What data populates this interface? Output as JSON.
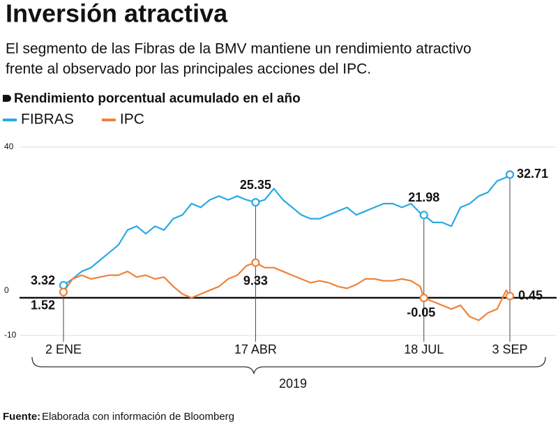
{
  "chart_data": {
    "type": "line",
    "title": "Inversión atractiva",
    "subtitle_lines": [
      "El segmento de las Fibras de la BMV mantiene un rendimiento atractivo",
      "frente al observado por las principales acciones del IPC."
    ],
    "chart_title": "Rendimiento porcentual acumulado en el año",
    "x": [
      2,
      7,
      12,
      17,
      22,
      27,
      32,
      37,
      42,
      47,
      52,
      57,
      62,
      67,
      72,
      77,
      82,
      87,
      92,
      97,
      102,
      107,
      112,
      117,
      122,
      127,
      132,
      137,
      142,
      147,
      152,
      157,
      162,
      167,
      172,
      177,
      182,
      187,
      192,
      197,
      199,
      204,
      209,
      214,
      219,
      224,
      229,
      234,
      239,
      244,
      246
    ],
    "xlim": [
      2,
      246
    ],
    "xticks": [
      {
        "value": 2,
        "label": "2 ENE"
      },
      {
        "value": 107,
        "label": "17 ABR"
      },
      {
        "value": 199,
        "label": "18 JUL"
      },
      {
        "value": 246,
        "label": "3 SEP"
      }
    ],
    "x_group_label": "2019",
    "ylim": [
      -10,
      40
    ],
    "yticks": [
      -10,
      0,
      40
    ],
    "series": [
      {
        "name": "FIBRAS",
        "color": "#29a9e1",
        "values": [
          3.32,
          5,
          7,
          8,
          10,
          12,
          14,
          18,
          19,
          17,
          19,
          18,
          21,
          22,
          25,
          24,
          26,
          27,
          26,
          27,
          26,
          25.35,
          26,
          29,
          26,
          24,
          22,
          21,
          21,
          22,
          23,
          24,
          22,
          23,
          24,
          25,
          25,
          24,
          25,
          22.5,
          21.98,
          20,
          20,
          19,
          24,
          25,
          27,
          28,
          31,
          32,
          32.71
        ]
      },
      {
        "name": "IPC",
        "color": "#f0813a",
        "values": [
          1.52,
          5,
          6,
          5,
          5.5,
          6,
          6,
          7,
          5.5,
          6,
          5,
          5.5,
          3,
          1,
          0,
          1,
          2,
          3,
          5,
          6,
          8.5,
          9.33,
          8,
          8,
          7,
          6,
          5,
          4,
          4.5,
          4,
          3,
          2.5,
          3.5,
          5,
          5,
          4.5,
          4.5,
          5,
          4.5,
          3,
          -0.05,
          -1,
          -2,
          -3,
          -2,
          -5,
          -6,
          -4,
          -3,
          2,
          0.45
        ]
      }
    ],
    "source_label": "Fuente:",
    "source": "Elaborada con información de Bloomberg"
  }
}
